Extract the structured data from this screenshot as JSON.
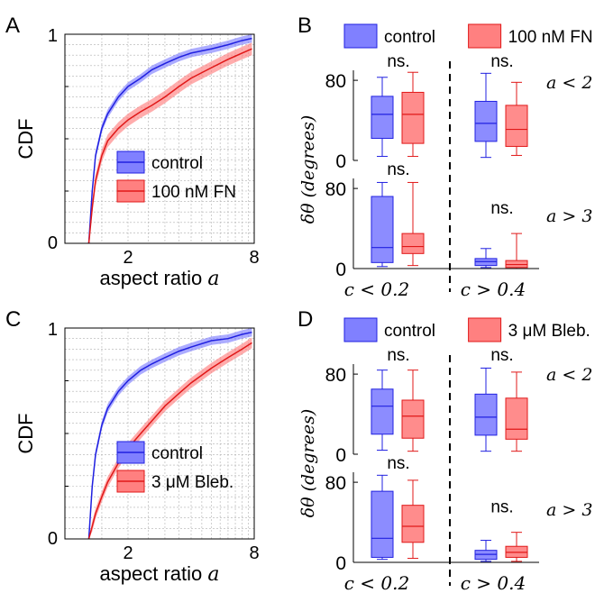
{
  "colors": {
    "control": "#2020e0",
    "control_fill": "#8080ff",
    "treatment": "#e01818",
    "treatment_fill": "#ff8080",
    "grid": "#b0b0b0"
  },
  "panels": {
    "A": "A",
    "B": "B",
    "C": "C",
    "D": "D"
  },
  "chart_data": [
    {
      "panel": "A",
      "type": "line",
      "xlabel": "aspect ratio",
      "xlabel_var": "a",
      "ylabel": "CDF",
      "xlim": [
        1,
        8
      ],
      "ylim": [
        0,
        1
      ],
      "xticks": [
        "2",
        "8"
      ],
      "yticks": [
        "0",
        "1"
      ],
      "xscale": "log",
      "grid": true,
      "legend_position": "center-right",
      "series": [
        {
          "name": "control",
          "x": [
            1.3,
            1.35,
            1.4,
            1.5,
            1.6,
            1.8,
            2.0,
            2.3,
            2.6,
            3.0,
            3.5,
            4.0,
            5.0,
            6.0,
            7.0,
            7.8
          ],
          "y": [
            0.0,
            0.25,
            0.42,
            0.55,
            0.62,
            0.7,
            0.75,
            0.79,
            0.83,
            0.86,
            0.89,
            0.91,
            0.93,
            0.95,
            0.97,
            0.98
          ],
          "band": 0.02
        },
        {
          "name": "100 nM FN",
          "x": [
            1.3,
            1.35,
            1.4,
            1.5,
            1.6,
            1.8,
            2.0,
            2.3,
            2.6,
            3.0,
            3.5,
            4.0,
            5.0,
            6.0,
            7.0,
            7.8
          ],
          "y": [
            0.0,
            0.17,
            0.3,
            0.42,
            0.49,
            0.55,
            0.59,
            0.63,
            0.66,
            0.7,
            0.75,
            0.79,
            0.84,
            0.88,
            0.91,
            0.93
          ],
          "band": 0.03
        }
      ]
    },
    {
      "panel": "B",
      "type": "box",
      "ylabel": "δθ (degrees)",
      "ylim": [
        0,
        90
      ],
      "yticks": [
        "0",
        "80"
      ],
      "legend": [
        "control",
        "100 nM FN"
      ],
      "group_labels": [
        "c < 0.2",
        "c > 0.4"
      ],
      "row_labels": [
        "a < 2",
        "a > 3"
      ],
      "annotation": "ns.",
      "rows": [
        {
          "label": "a < 2",
          "groups": [
            {
              "group": "c < 0.2",
              "boxes": [
                {
                  "series": "control",
                  "min": 4,
                  "q1": 22,
                  "median": 46,
                  "q3": 64,
                  "max": 83
                },
                {
                  "series": "100 nM FN",
                  "min": 4,
                  "q1": 17,
                  "median": 46,
                  "q3": 68,
                  "max": 88
                }
              ]
            },
            {
              "group": "c > 0.4",
              "boxes": [
                {
                  "series": "control",
                  "min": 3,
                  "q1": 19,
                  "median": 37,
                  "q3": 59,
                  "max": 87
                },
                {
                  "series": "100 nM FN",
                  "min": 5,
                  "q1": 14,
                  "median": 31,
                  "q3": 55,
                  "max": 78
                }
              ]
            }
          ]
        },
        {
          "label": "a > 3",
          "groups": [
            {
              "group": "c < 0.2",
              "boxes": [
                {
                  "series": "control",
                  "min": 2,
                  "q1": 6,
                  "median": 21,
                  "q3": 72,
                  "max": 86
                },
                {
                  "series": "100 nM FN",
                  "min": 3,
                  "q1": 15,
                  "median": 22,
                  "q3": 35,
                  "max": 86
                }
              ]
            },
            {
              "group": "c > 0.4",
              "boxes": [
                {
                  "series": "control",
                  "min": 1,
                  "q1": 3,
                  "median": 7,
                  "q3": 10,
                  "max": 20
                },
                {
                  "series": "100 nM FN",
                  "min": 0,
                  "q1": 1,
                  "median": 4,
                  "q3": 8,
                  "max": 35
                }
              ]
            }
          ]
        }
      ]
    },
    {
      "panel": "C",
      "type": "line",
      "xlabel": "aspect ratio",
      "xlabel_var": "a",
      "ylabel": "CDF",
      "xlim": [
        1,
        8
      ],
      "ylim": [
        0,
        1
      ],
      "xticks": [
        "2",
        "8"
      ],
      "yticks": [
        "0",
        "1"
      ],
      "xscale": "log",
      "grid": true,
      "legend_position": "bottom-right",
      "series": [
        {
          "name": "control",
          "x": [
            1.3,
            1.35,
            1.4,
            1.5,
            1.6,
            1.8,
            2.0,
            2.3,
            2.6,
            3.0,
            3.5,
            4.0,
            5.0,
            6.0,
            7.0,
            7.8
          ],
          "y": [
            0.0,
            0.25,
            0.4,
            0.54,
            0.62,
            0.7,
            0.75,
            0.8,
            0.83,
            0.86,
            0.89,
            0.91,
            0.94,
            0.95,
            0.97,
            0.98
          ],
          "band": 0.02
        },
        {
          "name": "3 μM Bleb.",
          "x": [
            1.3,
            1.35,
            1.4,
            1.5,
            1.6,
            1.8,
            2.0,
            2.3,
            2.6,
            3.0,
            3.5,
            4.0,
            5.0,
            6.0,
            7.0,
            7.8
          ],
          "y": [
            0.0,
            0.06,
            0.12,
            0.2,
            0.27,
            0.36,
            0.43,
            0.5,
            0.56,
            0.63,
            0.69,
            0.74,
            0.81,
            0.86,
            0.9,
            0.93
          ],
          "band": 0.025
        }
      ]
    },
    {
      "panel": "D",
      "type": "box",
      "ylabel": "δθ (degrees)",
      "ylim": [
        0,
        90
      ],
      "yticks": [
        "0",
        "80"
      ],
      "legend": [
        "control",
        "3 μM Bleb."
      ],
      "group_labels": [
        "c < 0.2",
        "c > 0.4"
      ],
      "row_labels": [
        "a < 2",
        "a > 3"
      ],
      "annotation": "ns.",
      "rows": [
        {
          "label": "a < 2",
          "groups": [
            {
              "group": "c < 0.2",
              "boxes": [
                {
                  "series": "control",
                  "min": 4,
                  "q1": 20,
                  "median": 48,
                  "q3": 65,
                  "max": 84
                },
                {
                  "series": "3 μM Bleb.",
                  "min": 3,
                  "q1": 16,
                  "median": 38,
                  "q3": 54,
                  "max": 84
                }
              ]
            },
            {
              "group": "c > 0.4",
              "boxes": [
                {
                  "series": "control",
                  "min": 3,
                  "q1": 19,
                  "median": 37,
                  "q3": 60,
                  "max": 86
                },
                {
                  "series": "3 μM Bleb.",
                  "min": 3,
                  "q1": 15,
                  "median": 25,
                  "q3": 56,
                  "max": 82
                }
              ]
            }
          ]
        },
        {
          "label": "a > 3",
          "groups": [
            {
              "group": "c < 0.2",
              "boxes": [
                {
                  "series": "control",
                  "min": 3,
                  "q1": 5,
                  "median": 24,
                  "q3": 71,
                  "max": 87
                },
                {
                  "series": "3 μM Bleb.",
                  "min": 4,
                  "q1": 20,
                  "median": 36,
                  "q3": 57,
                  "max": 82
                }
              ]
            },
            {
              "group": "c > 0.4",
              "boxes": [
                {
                  "series": "control",
                  "min": 1,
                  "q1": 3,
                  "median": 8,
                  "q3": 12,
                  "max": 22
                },
                {
                  "series": "3 μM Bleb.",
                  "min": 1,
                  "q1": 5,
                  "median": 10,
                  "q3": 16,
                  "max": 30
                }
              ]
            }
          ]
        }
      ]
    }
  ]
}
